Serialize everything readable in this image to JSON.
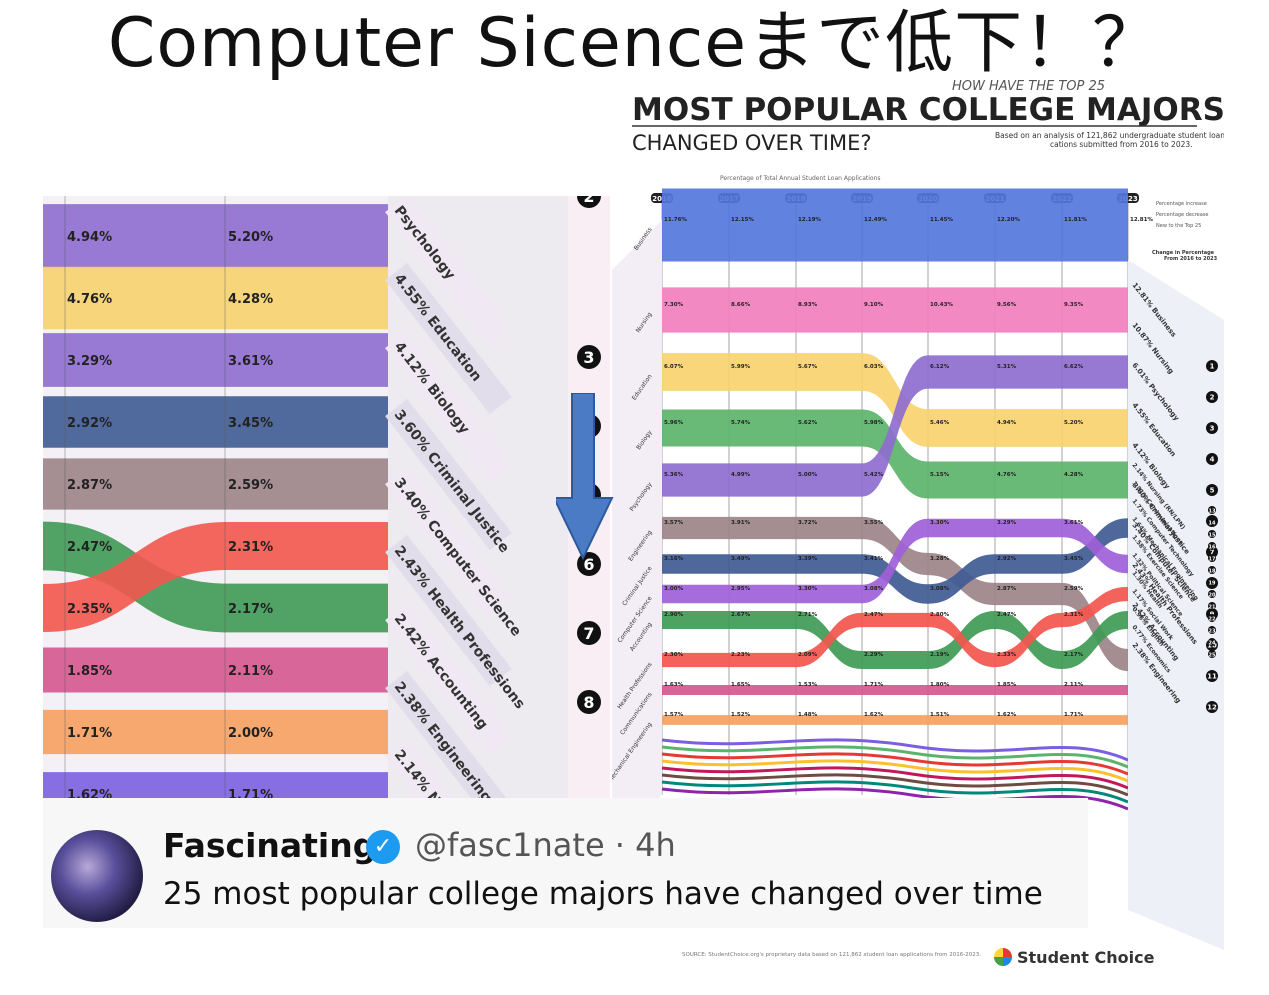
{
  "title": "Computer Sicenceまで低下！？",
  "tweet": {
    "name": "Fascinating",
    "handle": "@fasc1nate · 4h",
    "text": "25 most popular college majors have changed over time"
  },
  "infographic": {
    "kicker": "HOW HAVE THE TOP 25",
    "headline": "MOST POPULAR COLLEGE MAJORS",
    "subhead": "CHANGED OVER TIME?",
    "note": "Based on an analysis of 121,862 undergraduate student loan applications submitted from 2016 to 2023.",
    "axis_note": "Percentage of Total Annual Student Loan Applications",
    "legend": [
      "Percentage increase",
      "Percentage decrease",
      "New to the Top 25"
    ],
    "change_header": "Change in Percentage From 2016 to 2023",
    "source": "SOURCE: StudentChoice.org's proprietary data based on 121,862 student loan applications from 2016-2023.",
    "brand": "Student Choice"
  },
  "colors": {
    "Business": "#5577dd",
    "Nursing": "#f27fbd",
    "Education": "#f7d36e",
    "Biology": "#5cb36b",
    "Psychology": "#8e6ccf",
    "Engineering": "#9c8488",
    "Criminal Justice": "#3f5b93",
    "Computer Science": "#9f5fd9",
    "Accounting": "#3f9a55",
    "Health Professions": "#f2564e",
    "Communications": "#d6578f",
    "Mechanical Engineering": "#f6a060",
    "Exercise Science": "#7b5fe0",
    "Fine Arts": "#909090"
  },
  "chart_data": [
    {
      "type": "area",
      "name": "zoomed detail (2016–2017)",
      "x": [
        "2016",
        "2017"
      ],
      "series": [
        {
          "name": "Psychology",
          "values": [
            4.94,
            5.2
          ],
          "right_label": "Psychology"
        },
        {
          "name": "Education",
          "values": [
            4.76,
            4.28
          ],
          "right_label": "4.55% Education"
        },
        {
          "name": "Psychology",
          "values": [
            3.29,
            3.61
          ],
          "right_label": "4.12% Biology"
        },
        {
          "name": "Criminal Justice",
          "values": [
            2.92,
            3.45
          ],
          "right_label": "3.60% Criminal Justice"
        },
        {
          "name": "Engineering",
          "values": [
            2.87,
            2.59
          ],
          "right_label": "3.40% Computer Science"
        },
        {
          "name": "Accounting",
          "values": [
            2.47,
            2.17
          ],
          "right_label": "2.43% Health Professions"
        },
        {
          "name": "Health Professions",
          "values": [
            2.35,
            2.31
          ],
          "right_label": "2.42% Accounting"
        },
        {
          "name": "Communications",
          "values": [
            1.85,
            2.11
          ],
          "right_label": "2.38% Engineering"
        },
        {
          "name": "Mechanical Engineering",
          "values": [
            1.71,
            2.0
          ],
          "right_label": "2.14% Nursing"
        },
        {
          "name": "Exercise Science",
          "values": [
            1.62,
            1.71
          ],
          "right_label": "1.81%"
        }
      ],
      "rank_markers": [
        "2",
        "3",
        "4",
        "5",
        "6",
        "7",
        "8"
      ]
    },
    {
      "type": "area",
      "name": "full infographic",
      "x": [
        "2016",
        "2017",
        "2018",
        "2019",
        "2020",
        "2021",
        "2022",
        "2023"
      ],
      "series": [
        {
          "name": "Business",
          "values": [
            11.76,
            12.15,
            12.19,
            12.49,
            11.45,
            12.2,
            11.81,
            12.81
          ]
        },
        {
          "name": "Nursing",
          "values": [
            7.3,
            8.66,
            8.93,
            9.1,
            10.43,
            9.56,
            9.35,
            10.87
          ]
        },
        {
          "name": "Education",
          "values": [
            6.07,
            5.99,
            5.67,
            6.03,
            5.46,
            4.94,
            5.2,
            4.55
          ]
        },
        {
          "name": "Biology",
          "values": [
            5.96,
            5.74,
            5.62,
            5.98,
            5.15,
            4.76,
            4.28,
            4.12
          ]
        },
        {
          "name": "Psychology",
          "values": [
            5.36,
            4.99,
            5.0,
            5.42,
            6.12,
            5.31,
            6.62,
            6.01
          ]
        },
        {
          "name": "Engineering",
          "values": [
            3.57,
            3.91,
            3.72,
            3.55,
            3.28,
            2.87,
            2.59,
            2.38
          ]
        },
        {
          "name": "Criminal Justice",
          "values": [
            3.16,
            3.49,
            3.39,
            3.41,
            3.08,
            2.92,
            3.45,
            3.6
          ]
        },
        {
          "name": "Computer Science",
          "values": [
            3.0,
            2.95,
            3.3,
            3.08,
            3.3,
            3.29,
            3.61,
            3.4
          ]
        },
        {
          "name": "Accounting",
          "values": [
            2.9,
            2.67,
            2.71,
            2.29,
            2.19,
            2.47,
            2.17,
            2.42
          ]
        },
        {
          "name": "Health Professions",
          "values": [
            2.3,
            2.23,
            2.09,
            2.47,
            2.8,
            2.33,
            2.31,
            2.43
          ]
        },
        {
          "name": "Communications",
          "values": [
            1.63,
            1.65,
            1.53,
            1.71,
            1.8,
            1.85,
            2.11,
            1.81
          ]
        },
        {
          "name": "Mechanical Engineering",
          "values": [
            1.57,
            1.52,
            1.48,
            1.62,
            1.51,
            1.62,
            1.71,
            1.64
          ]
        }
      ],
      "right_labels": [
        "12.81% Business",
        "10.87% Nursing",
        "6.01% Psychology",
        "4.55% Education",
        "4.12% Biology",
        "3.60% Criminal Justice",
        "3.40% Computer Science",
        "2.43% Health Professions",
        "2.42% Accounting",
        "2.38% Engineering",
        "2.14% Nursing (RN/LPN)",
        "1.81% Communications",
        "1.73% Computer Technology",
        "1.64% Mechanical Engineering",
        "1.58% Exercise Science",
        "1.32% Political Science",
        "1.30% Health",
        "1.17% Social Work",
        "0.96% English",
        "0.77% Economics"
      ],
      "ranks": [
        "1",
        "2",
        "3",
        "4",
        "5",
        "6",
        "7",
        "8",
        "9",
        "10",
        "11",
        "12",
        "13",
        "14",
        "15",
        "16",
        "17",
        "18",
        "19",
        "20",
        "21",
        "22",
        "23",
        "24",
        "25"
      ]
    }
  ]
}
